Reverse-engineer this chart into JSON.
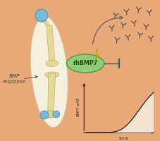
{
  "background_color": "#e8a878",
  "skin_color": "#f5efe0",
  "skin_edge": "#d4c8a0",
  "bone_color": "#e8d898",
  "bone_edge": "#c8b870",
  "joint_color": "#7ab8d8",
  "joint_edge": "#5090b0",
  "rhbmp7_color": "#90cc78",
  "rhbmp7_edge": "#509840",
  "rhbmp7_text": "rhBMP7",
  "lightning_color": "#f0e010",
  "lightning_edge": "#b09800",
  "ab_color": "#555555",
  "arrow_color": "#666666",
  "bmp_label": "BMP\nresponse",
  "bmp_label_color": "#444444",
  "graph_fill_start": "#f8ede0",
  "graph_fill_end": "#e8c8a0",
  "graph_line_color": "#222222",
  "graph_axis_color": "#222222",
  "time_label": "time",
  "y_label": "BMP7-aAB",
  "graph_bg": "#e8a878",
  "inhibit_color": "#555555"
}
